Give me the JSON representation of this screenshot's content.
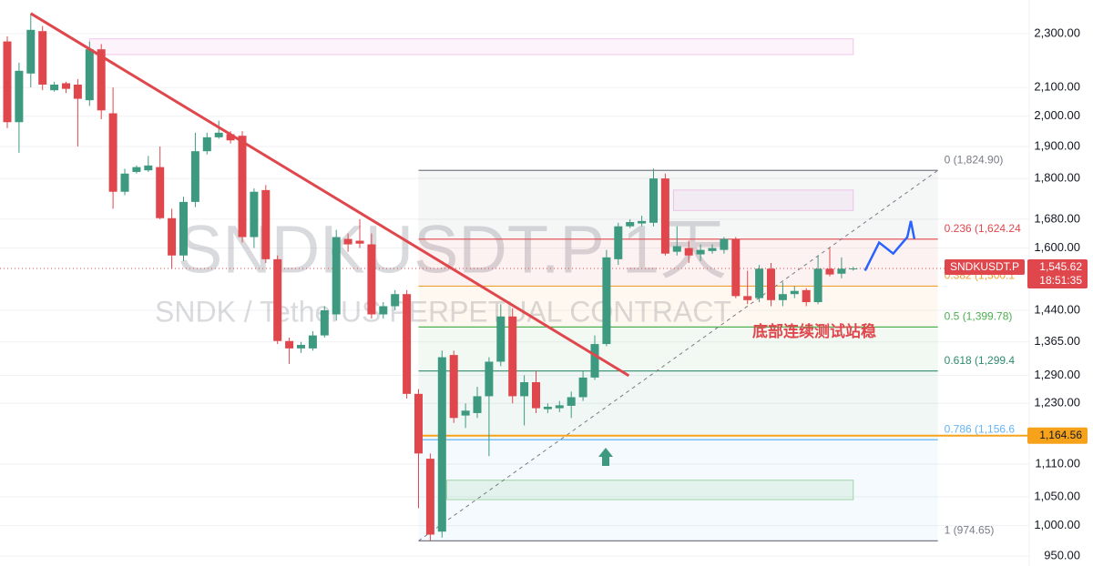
{
  "chart_data": {
    "type": "candlestick",
    "title": "SNDKUSDT.P 1天",
    "subtitle": "SNDK / TetherUS PERPETUAL CONTRACT",
    "log_scale": true,
    "grid": true,
    "ylim": [
      934,
      2435
    ],
    "yticks": [
      {
        "value": 950,
        "label": "950.00"
      },
      {
        "value": 1000,
        "label": "1,000.00"
      },
      {
        "value": 1050,
        "label": "1,050.00"
      },
      {
        "value": 1110,
        "label": "1,110.00"
      },
      {
        "value": 1230,
        "label": "1,230.00"
      },
      {
        "value": 1290,
        "label": "1,290.00"
      },
      {
        "value": 1365,
        "label": "1,365.00"
      },
      {
        "value": 1440,
        "label": "1,440.00"
      },
      {
        "value": 1600,
        "label": "1,600.00"
      },
      {
        "value": 1680,
        "label": "1,680.00"
      },
      {
        "value": 1800,
        "label": "1,800.00"
      },
      {
        "value": 1900,
        "label": "1,900.00"
      },
      {
        "value": 2000,
        "label": "2,000.00"
      },
      {
        "value": 2100,
        "label": "2,100.00"
      },
      {
        "value": 2300,
        "label": "2,300.00"
      }
    ],
    "series": [
      {
        "name": "SNDKUSDT.P",
        "up_color": "#3d9a80",
        "down_color": "#e0474c",
        "open": [
          2270,
          1980,
          2150,
          2310,
          2090,
          2115,
          2110,
          2055,
          2240,
          2010,
          1760,
          1820,
          1825,
          1835,
          1683,
          1580,
          1730,
          1885,
          1930,
          1940,
          1935,
          1630,
          1765,
          1570,
          1367,
          1350,
          1350,
          1380,
          1430,
          1625,
          1620,
          1610,
          1430,
          1450,
          1480,
          1250,
          1120,
          990,
          1335,
          1205,
          1210,
          1245,
          1320,
          1425,
          1245,
          1275,
          1218,
          1220,
          1225,
          1243,
          1285,
          1360,
          1570,
          1660,
          1668,
          1670,
          1800,
          1590,
          1600,
          1583,
          1592,
          1595,
          1625,
          1475,
          1470,
          1545,
          1465,
          1480,
          1490,
          1460,
          1545,
          1532,
          1545
        ],
        "high": [
          2290,
          2190,
          2380,
          2330,
          2120,
          2120,
          2130,
          2270,
          2260,
          2100,
          1830,
          1840,
          1870,
          1900,
          1710,
          1745,
          1945,
          1945,
          1985,
          1950,
          1950,
          1770,
          1780,
          1580,
          1375,
          1365,
          1390,
          1450,
          1650,
          1640,
          1680,
          1640,
          1460,
          1490,
          1490,
          1260,
          1130,
          1345,
          1345,
          1230,
          1265,
          1330,
          1455,
          1445,
          1290,
          1300,
          1230,
          1235,
          1255,
          1300,
          1380,
          1595,
          1670,
          1680,
          1690,
          1830,
          1815,
          1660,
          1620,
          1610,
          1610,
          1630,
          1630,
          1540,
          1555,
          1560,
          1510,
          1500,
          1495,
          1580,
          1600,
          1575,
          1550
        ],
        "low": [
          1960,
          1880,
          2100,
          2090,
          2085,
          2080,
          1900,
          2035,
          1990,
          1710,
          1750,
          1815,
          1820,
          1680,
          1545,
          1565,
          1715,
          1875,
          1925,
          1910,
          1615,
          1600,
          1560,
          1360,
          1315,
          1340,
          1345,
          1375,
          1415,
          1590,
          1600,
          1420,
          1420,
          1440,
          1240,
          1030,
          975,
          980,
          1190,
          1180,
          1200,
          1125,
          1310,
          1230,
          1185,
          1210,
          1210,
          1212,
          1200,
          1235,
          1280,
          1355,
          1555,
          1655,
          1660,
          1660,
          1580,
          1580,
          1560,
          1565,
          1585,
          1585,
          1470,
          1455,
          1460,
          1450,
          1450,
          1470,
          1450,
          1455,
          1525,
          1520,
          1540
        ],
        "close": [
          1980,
          2160,
          2315,
          2110,
          2110,
          2095,
          2060,
          2240,
          2020,
          1760,
          1815,
          1835,
          1840,
          1683,
          1580,
          1730,
          1885,
          1930,
          1945,
          1920,
          1630,
          1760,
          1570,
          1367,
          1350,
          1358,
          1380,
          1440,
          1630,
          1610,
          1612,
          1430,
          1450,
          1480,
          1250,
          1130,
          985,
          1330,
          1200,
          1215,
          1245,
          1320,
          1425,
          1245,
          1275,
          1220,
          1223,
          1226,
          1243,
          1285,
          1360,
          1575,
          1660,
          1672,
          1675,
          1800,
          1585,
          1605,
          1580,
          1595,
          1600,
          1625,
          1475,
          1465,
          1545,
          1465,
          1480,
          1488,
          1460,
          1545,
          1530,
          1545,
          1545.62
        ]
      }
    ],
    "last_price": {
      "value": 1545.62,
      "label": "1,545.62",
      "color": "#e0474c"
    },
    "countdown": "18:51:35",
    "price_line": {
      "value": 1164.56,
      "label": "1,164.56",
      "color": "#f7a21b"
    },
    "fibonacci": {
      "x": [
        35,
        79.2
      ],
      "levels": [
        {
          "value": 1824.9,
          "label": "0 (1,824.90)",
          "color": "#787b86"
        },
        {
          "value": 1624.24,
          "label": "0.236 (1,624.24",
          "color": "#e0474c"
        },
        {
          "value": 1500.1,
          "label": "0.382 (1,500.1",
          "color": "#f0a030"
        },
        {
          "value": 1399.78,
          "label": "0.5 (1,399.78)",
          "color": "#4caf50"
        },
        {
          "value": 1299.4,
          "label": "0.618 (1,299.4",
          "color": "#2e8b6e"
        },
        {
          "value": 1156.6,
          "label": "0.786 (1,156.6",
          "color": "#64b5f6"
        },
        {
          "value": 974.65,
          "label": "1 (974.65)",
          "color": "#787b86"
        }
      ]
    },
    "trendline": {
      "x": [
        2,
        52.9
      ],
      "y": [
        2380,
        1289
      ],
      "color": "#e0474c"
    },
    "projection": {
      "x": [
        73,
        74.2,
        75.4,
        76.6,
        76.9,
        77.2
      ],
      "y": [
        1540,
        1615,
        1585,
        1630,
        1675,
        1625
      ],
      "color": "#2962ff"
    },
    "zones": [
      {
        "x": [
          7,
          72
        ],
        "y": [
          2220,
          2280
        ],
        "color": "#e58ad8"
      },
      {
        "x": [
          56.7,
          72
        ],
        "y": [
          1705,
          1765
        ],
        "color": "#e58ad8"
      },
      {
        "x": [
          37.4,
          72
        ],
        "y": [
          1045,
          1080
        ],
        "color": "#4caf50"
      }
    ],
    "annotation": "底部连续测试站稳"
  }
}
